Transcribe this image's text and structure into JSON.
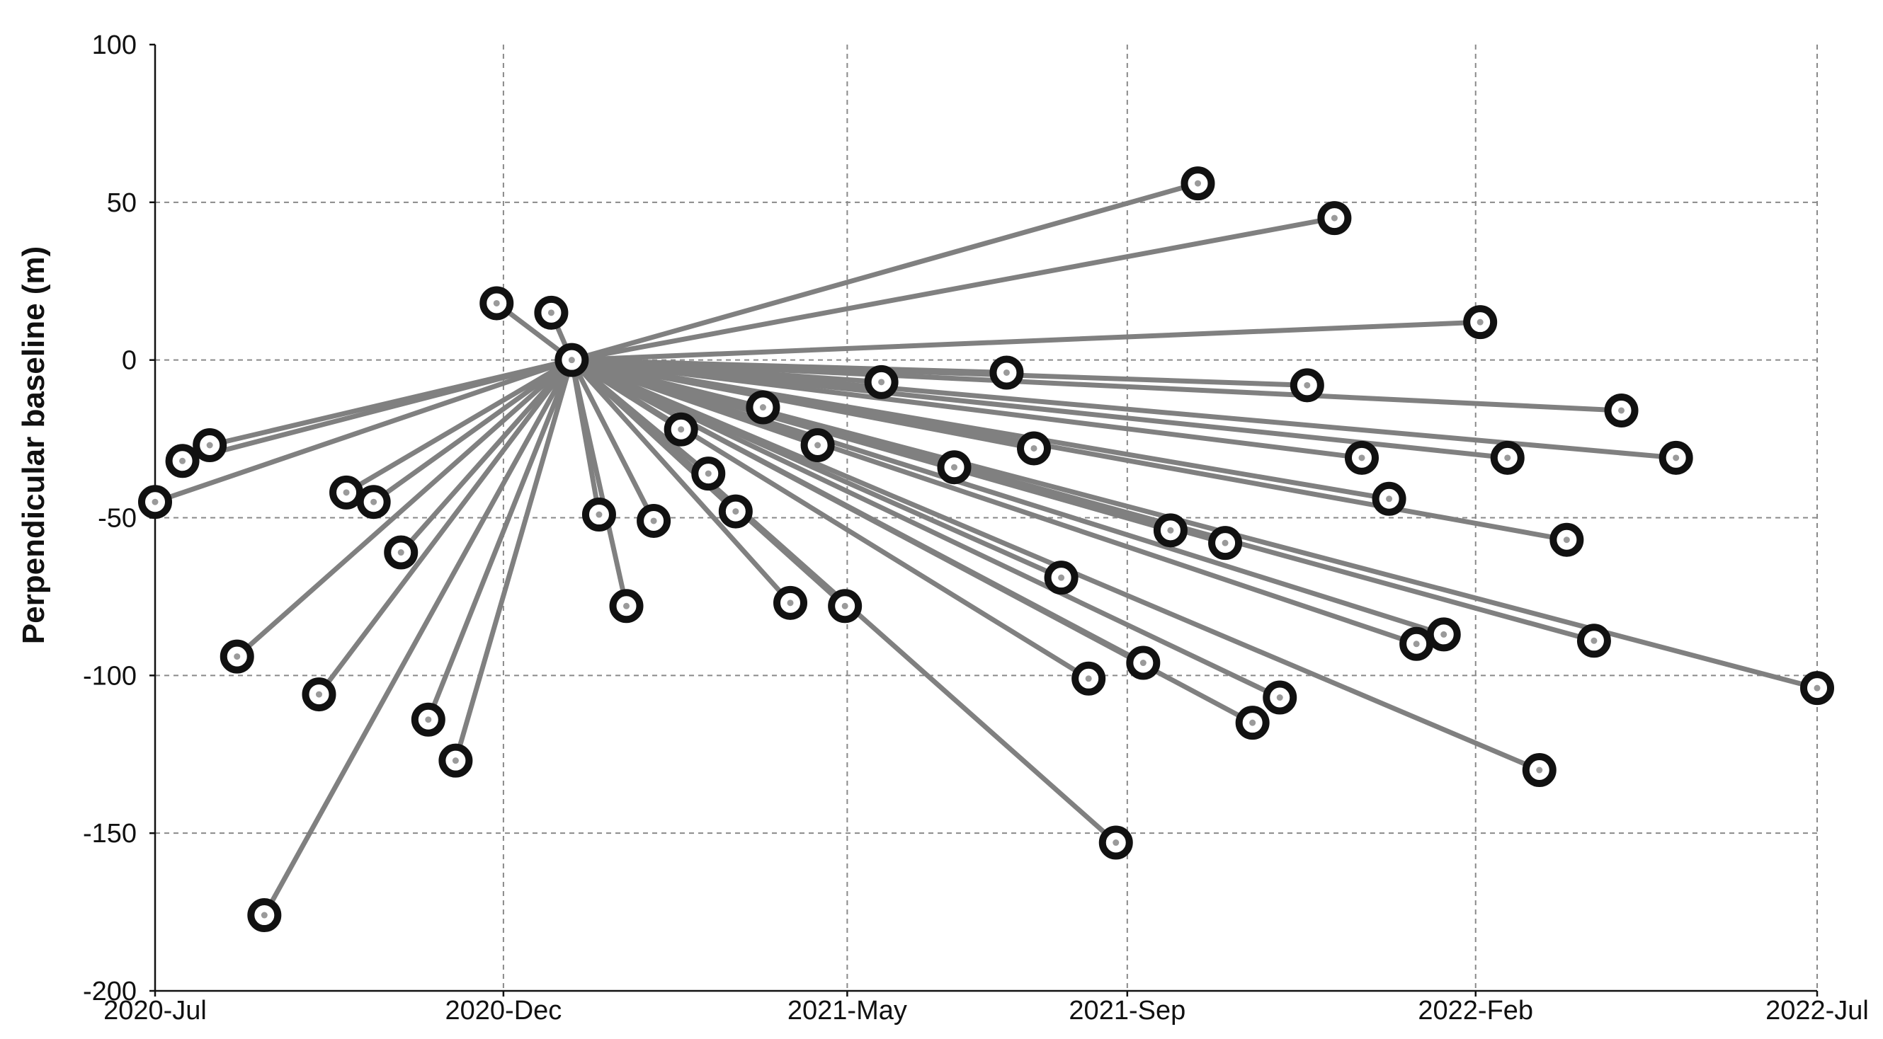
{
  "chart_data": {
    "type": "scatter",
    "title": "",
    "xlabel": "",
    "ylabel": "Perpendicular baseline (m)",
    "ylim": [
      -200,
      100
    ],
    "y_ticks": [
      100,
      50,
      0,
      -50,
      -100,
      -150,
      -200
    ],
    "y_tick_labels": [
      "100",
      "50",
      "0",
      "-50",
      "-100",
      "-150",
      "-200"
    ],
    "xlim": [
      "2020-07-01",
      "2022-07-01"
    ],
    "x_ticks": [
      "2020-07-01",
      "2020-12-01",
      "2021-05-01",
      "2021-09-01",
      "2022-02-01",
      "2022-07-01"
    ],
    "x_tick_labels": [
      "2020-Jul",
      "2020-Dec",
      "2021-May",
      "2021-Sep",
      "2022-Feb",
      "2022-Jul"
    ],
    "grid": true,
    "reference": {
      "date": "2020-12-31",
      "baseline": 0
    },
    "points": [
      {
        "date": "2020-07-01",
        "baseline": -45
      },
      {
        "date": "2020-07-13",
        "baseline": -32
      },
      {
        "date": "2020-07-25",
        "baseline": -27
      },
      {
        "date": "2020-08-06",
        "baseline": -94
      },
      {
        "date": "2020-08-18",
        "baseline": -176
      },
      {
        "date": "2020-09-11",
        "baseline": -106
      },
      {
        "date": "2020-09-23",
        "baseline": -42
      },
      {
        "date": "2020-10-05",
        "baseline": -45
      },
      {
        "date": "2020-10-17",
        "baseline": -61
      },
      {
        "date": "2020-10-29",
        "baseline": -114
      },
      {
        "date": "2020-11-10",
        "baseline": -127
      },
      {
        "date": "2020-11-28",
        "baseline": 18
      },
      {
        "date": "2020-12-22",
        "baseline": 15
      },
      {
        "date": "2021-01-12",
        "baseline": -49
      },
      {
        "date": "2021-01-24",
        "baseline": -78
      },
      {
        "date": "2021-02-05",
        "baseline": -51
      },
      {
        "date": "2021-02-17",
        "baseline": -22
      },
      {
        "date": "2021-03-01",
        "baseline": -36
      },
      {
        "date": "2021-03-13",
        "baseline": -48
      },
      {
        "date": "2021-03-25",
        "baseline": -15
      },
      {
        "date": "2021-04-06",
        "baseline": -77
      },
      {
        "date": "2021-04-18",
        "baseline": -27
      },
      {
        "date": "2021-04-30",
        "baseline": -78
      },
      {
        "date": "2021-05-16",
        "baseline": -7
      },
      {
        "date": "2021-06-17",
        "baseline": -34
      },
      {
        "date": "2021-07-10",
        "baseline": -4
      },
      {
        "date": "2021-07-22",
        "baseline": -28
      },
      {
        "date": "2021-08-03",
        "baseline": -69
      },
      {
        "date": "2021-08-15",
        "baseline": -101
      },
      {
        "date": "2021-08-27",
        "baseline": -153
      },
      {
        "date": "2021-09-08",
        "baseline": -96
      },
      {
        "date": "2021-09-20",
        "baseline": -54
      },
      {
        "date": "2021-10-02",
        "baseline": 56
      },
      {
        "date": "2021-10-14",
        "baseline": -58
      },
      {
        "date": "2021-10-26",
        "baseline": -115
      },
      {
        "date": "2021-11-07",
        "baseline": -107
      },
      {
        "date": "2021-11-19",
        "baseline": -8
      },
      {
        "date": "2021-12-01",
        "baseline": 45
      },
      {
        "date": "2021-12-13",
        "baseline": -31
      },
      {
        "date": "2021-12-25",
        "baseline": -44
      },
      {
        "date": "2022-01-06",
        "baseline": -90
      },
      {
        "date": "2022-01-18",
        "baseline": -87
      },
      {
        "date": "2022-02-03",
        "baseline": 12
      },
      {
        "date": "2022-02-15",
        "baseline": -31
      },
      {
        "date": "2022-03-01",
        "baseline": -130
      },
      {
        "date": "2022-03-13",
        "baseline": -57
      },
      {
        "date": "2022-03-25",
        "baseline": -89
      },
      {
        "date": "2022-04-06",
        "baseline": -16
      },
      {
        "date": "2022-04-30",
        "baseline": -31
      },
      {
        "date": "2022-07-01",
        "baseline": -104
      }
    ]
  }
}
